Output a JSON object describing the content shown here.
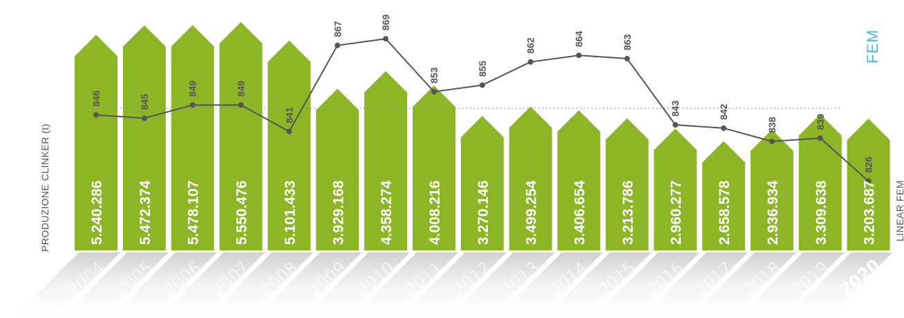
{
  "chart_data": {
    "type": "bar",
    "categories": [
      "2004",
      "2005",
      "2006",
      "2007",
      "2008",
      "2009",
      "2010",
      "2011",
      "2012",
      "2013",
      "2014",
      "2015",
      "2016",
      "2017",
      "2018",
      "2019",
      "2020"
    ],
    "series": [
      {
        "name": "PRODUZIONE CLINKER (t)",
        "type": "bar",
        "values": [
          5240286,
          5472374,
          5478107,
          5550476,
          5101433,
          3929168,
          4358274,
          4008216,
          3270146,
          3499254,
          3406654,
          3213786,
          2960277,
          2658578,
          2936934,
          3309638,
          3203687
        ],
        "labels": [
          "5.240.286",
          "5.472.374",
          "5.478.107",
          "5.550.476",
          "5.101.433",
          "3.929.168",
          "4.358.274",
          "4.008.216",
          "3.270.146",
          "3.499.254",
          "3.406.654",
          "3.213.786",
          "2.960.277",
          "2.658.578",
          "2.936.934",
          "3.309.638",
          "3.203.687"
        ]
      },
      {
        "name": "FEM",
        "type": "line",
        "values": [
          846,
          845,
          849,
          849,
          841,
          867,
          869,
          853,
          855,
          862,
          864,
          863,
          843,
          842,
          838,
          839,
          826
        ]
      }
    ],
    "reference_line_label": "LINEAR FEM",
    "ylabel_left": "PRODUZIONE CLINKER (t)",
    "ylabel_right": "FEM",
    "highlighted_category": "2020",
    "colors": {
      "bar": "#8cb625",
      "bar_text": "#ffffff",
      "line": "#555555",
      "point": "#555555",
      "reference_line": "#9a9a9a",
      "fem_label": "#4bb8e4",
      "year_band": "#d4d4d4"
    },
    "grid": false,
    "legend": "none"
  }
}
